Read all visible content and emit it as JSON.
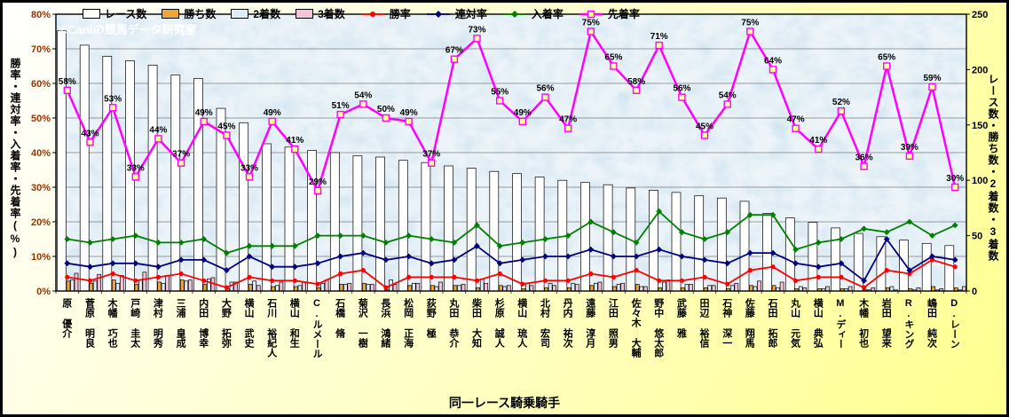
{
  "watermark": "©Caniの競馬データ研究室",
  "axis_titles": {
    "left": "勝率・連対率・入着率・先着率(%)",
    "right": "レース数・勝ち数・2着数・3着数",
    "x": "同一レース騎乗騎手"
  },
  "colors": {
    "plot_bg": "#c4dcec",
    "grid": "#444444",
    "left_tick_text": "#993300",
    "right_tick_text": "#000000",
    "data_label": "#000000",
    "page_bg": "#ffffc4",
    "border": "#000000"
  },
  "chart_data": {
    "type": "bar+line combo (clustered bars on right axis, rate lines on left axis)",
    "legend_position": "top",
    "grid": "horizontal",
    "categories": [
      "原 優介",
      "菅原 明良",
      "木幡 巧也",
      "戸崎 圭太",
      "津村 明秀",
      "三浦 皇成",
      "内田 博幸",
      "大野 拓弥",
      "横山 武史",
      "石川 裕紀人",
      "横山 和生",
      "C.ルメール",
      "石橋 脩",
      "菊沢 一樹",
      "長浜 鴻緒",
      "松岡 正海",
      "荻野 極",
      "丸田 恭介",
      "柴田 大知",
      "杉原 誠人",
      "横山 琉人",
      "北村 宏司",
      "丹内 祐次",
      "遠藤 淳月",
      "江田 照男",
      "佐々木 大輔",
      "野中 悠太郎",
      "武藤 雅",
      "田辺 裕信",
      "石神 深一",
      "佐藤 翔馬",
      "石田 拓郎",
      "丸山 元気",
      "横山 典弘",
      "M.ディー",
      "木幡 初也",
      "岩田 望来",
      "R.キング",
      "嶋田 純次",
      "D.レーン"
    ],
    "left_axis": {
      "min": 0,
      "max": 80,
      "step": 10,
      "unit": "%"
    },
    "right_axis": {
      "min": 0,
      "max": 250,
      "step": 50,
      "unit": ""
    },
    "bar_series": [
      {
        "name": "レース数",
        "axis": "right",
        "color": "#ffffff",
        "values": [
          235,
          222,
          212,
          208,
          204,
          195,
          192,
          165,
          152,
          133,
          130,
          127,
          125,
          122,
          121,
          118,
          116,
          113,
          111,
          108,
          106,
          103,
          100,
          98,
          96,
          93,
          91,
          89,
          86,
          84,
          81,
          70,
          66,
          62,
          57,
          52,
          49,
          46,
          43,
          41
        ]
      },
      {
        "name": "勝ち数",
        "axis": "right",
        "color": "#eda63a",
        "values": [
          9,
          7,
          10,
          6,
          8,
          10,
          6,
          2,
          6,
          4,
          4,
          3,
          6,
          7,
          1,
          5,
          5,
          5,
          3,
          5,
          2,
          3,
          3,
          5,
          4,
          6,
          3,
          3,
          3,
          2,
          5,
          5,
          2,
          2,
          2,
          1,
          3,
          2,
          4,
          3
        ]
      },
      {
        "name": "2着数",
        "axis": "right",
        "color": "#d9ecf7",
        "values": [
          10,
          9,
          7,
          10,
          7,
          9,
          11,
          8,
          9,
          5,
          5,
          7,
          6,
          6,
          10,
          7,
          4,
          5,
          11,
          4,
          7,
          7,
          7,
          7,
          6,
          4,
          8,
          6,
          5,
          5,
          4,
          3,
          4,
          2,
          2,
          1,
          4,
          1,
          1,
          1
        ]
      },
      {
        "name": "3着数",
        "axis": "right",
        "color": "#f3c3d7",
        "values": [
          16,
          15,
          14,
          17,
          14,
          10,
          12,
          8,
          5,
          8,
          8,
          10,
          7,
          6,
          6,
          7,
          8,
          6,
          7,
          5,
          5,
          5,
          6,
          8,
          7,
          4,
          10,
          6,
          5,
          7,
          9,
          8,
          3,
          4,
          4,
          3,
          1,
          3,
          2,
          4
        ]
      }
    ],
    "line_series": [
      {
        "name": "勝率",
        "axis": "left",
        "color": "#ff0000",
        "marker": "circle",
        "width": 1.8,
        "data_labels": false,
        "values": [
          4,
          3,
          5,
          3,
          4,
          5,
          3,
          1,
          4,
          3,
          3,
          2,
          5,
          6,
          1,
          4,
          4,
          4,
          3,
          5,
          2,
          3,
          3,
          5,
          4,
          6,
          3,
          3,
          4,
          2,
          6,
          7,
          3,
          4,
          4,
          1,
          6,
          5,
          9,
          7
        ]
      },
      {
        "name": "連対率",
        "axis": "left",
        "color": "#000080",
        "marker": "diamond",
        "width": 1.8,
        "data_labels": false,
        "values": [
          8,
          7,
          8,
          8,
          7,
          9,
          9,
          6,
          10,
          7,
          7,
          8,
          10,
          11,
          9,
          10,
          8,
          9,
          13,
          8,
          9,
          10,
          10,
          12,
          10,
          10,
          12,
          10,
          9,
          8,
          11,
          11,
          8,
          7,
          8,
          3,
          15,
          6,
          10,
          9
        ]
      },
      {
        "name": "入着率",
        "axis": "left",
        "color": "#008000",
        "marker": "diamond",
        "width": 1.8,
        "data_labels": false,
        "values": [
          15,
          14,
          15,
          16,
          14,
          14,
          15,
          11,
          13,
          13,
          13,
          16,
          16,
          16,
          14,
          16,
          15,
          14,
          19,
          13,
          14,
          15,
          16,
          20,
          17,
          14,
          23,
          17,
          15,
          17,
          22,
          22,
          12,
          14,
          15,
          18,
          17,
          20,
          16,
          19
        ]
      },
      {
        "name": "先着率",
        "axis": "left",
        "color": "#ff00ff",
        "marker": "square",
        "marker_fill": "#ffff99",
        "width": 2.5,
        "data_labels": true,
        "values": [
          58,
          43,
          53,
          33,
          44,
          37,
          49,
          45,
          33,
          49,
          41,
          29,
          51,
          54,
          50,
          49,
          37,
          67,
          73,
          55,
          49,
          56,
          47,
          75,
          65,
          58,
          71,
          56,
          45,
          54,
          75,
          64,
          47,
          41,
          52,
          36,
          65,
          39,
          59,
          30
        ]
      }
    ]
  }
}
